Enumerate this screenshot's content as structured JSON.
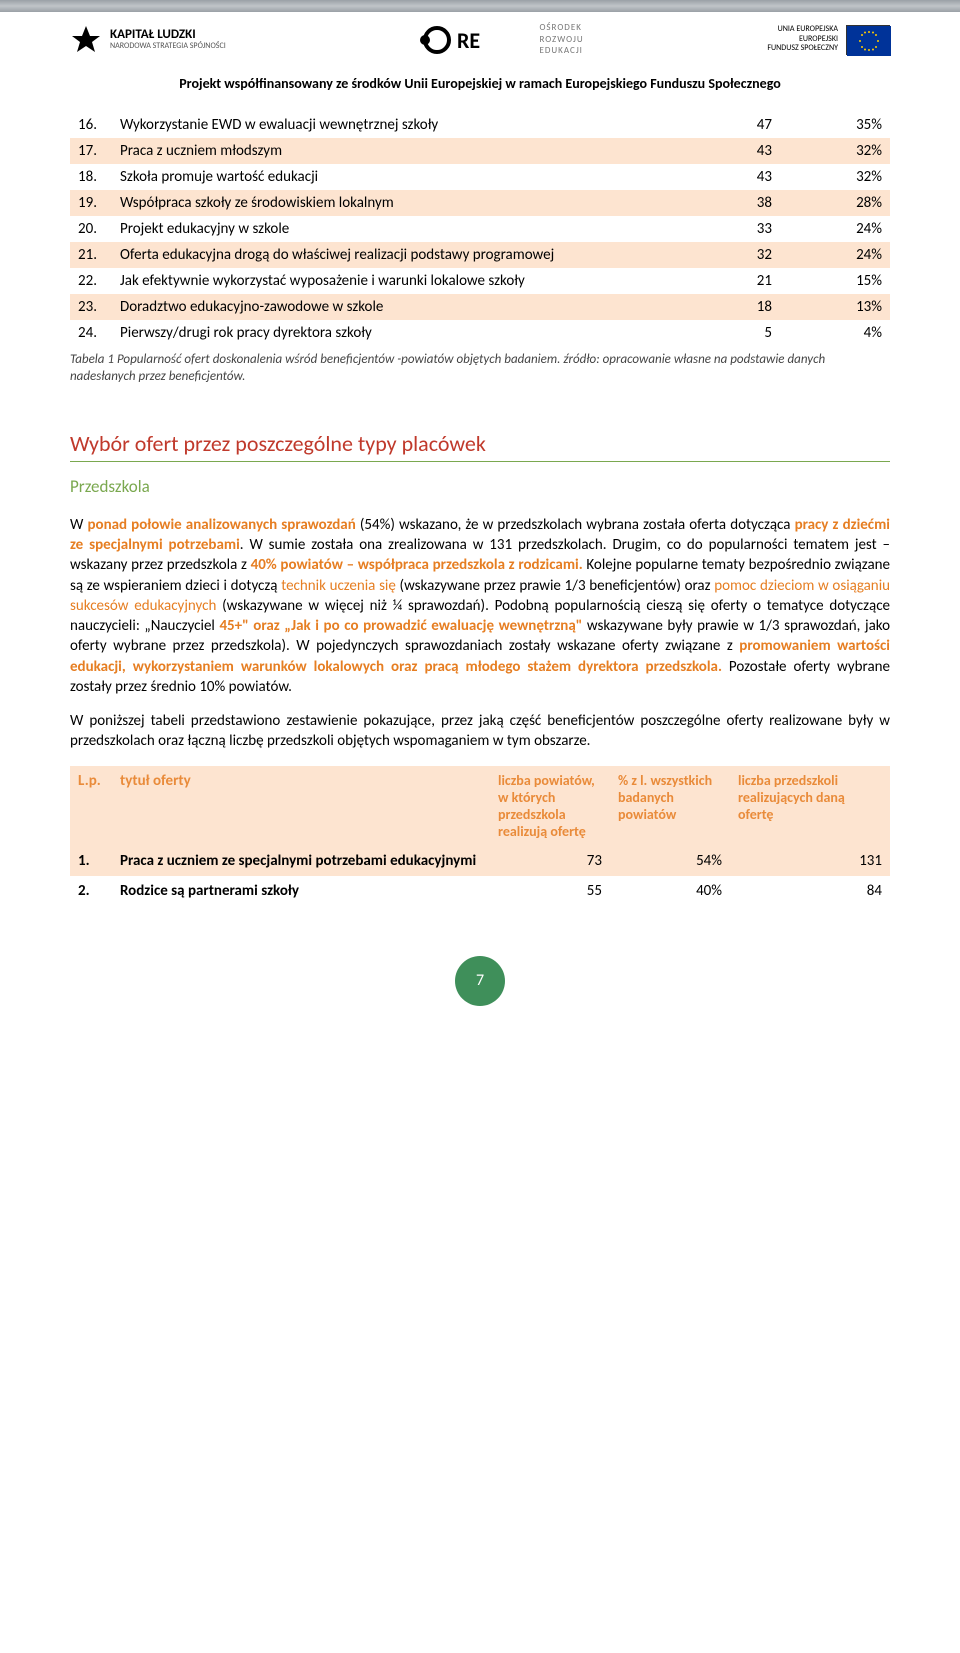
{
  "header": {
    "kl_title": "KAPITAŁ LUDZKI",
    "kl_sub": "NARODOWA STRATEGIA SPÓJNOŚCI",
    "ore_l1": "OŚRODEK",
    "ore_l2": "ROZWOJU",
    "ore_l3": "EDUKACJI",
    "eu_l1": "UNIA EUROPEJSKA",
    "eu_l2": "EUROPEJSKI",
    "eu_l3": "FUNDUSZ SPOŁECZNY",
    "cofinance": "Projekt współfinansowany ze środków Unii Europejskiej w ramach Europejskiego Funduszu Społecznego"
  },
  "table1": {
    "stripe_color": "#fde4d0",
    "rows": [
      {
        "n": "16.",
        "title": "Wykorzystanie EWD w ewaluacji wewnętrznej szkoły",
        "v1": "47",
        "v2": "35%",
        "stripe": false
      },
      {
        "n": "17.",
        "title": "Praca z uczniem młodszym",
        "v1": "43",
        "v2": "32%",
        "stripe": true
      },
      {
        "n": "18.",
        "title": "Szkoła promuje wartość edukacji",
        "v1": "43",
        "v2": "32%",
        "stripe": false
      },
      {
        "n": "19.",
        "title": "Współpraca szkoły ze środowiskiem lokalnym",
        "v1": "38",
        "v2": "28%",
        "stripe": true
      },
      {
        "n": "20.",
        "title": "Projekt edukacyjny w szkole",
        "v1": "33",
        "v2": "24%",
        "stripe": false
      },
      {
        "n": "21.",
        "title": "Oferta edukacyjna drogą do właściwej realizacji podstawy programowej",
        "v1": "32",
        "v2": "24%",
        "stripe": true
      },
      {
        "n": "22.",
        "title": "Jak efektywnie wykorzystać wyposażenie i warunki lokalowe szkoły",
        "v1": "21",
        "v2": "15%",
        "stripe": false
      },
      {
        "n": "23.",
        "title": "Doradztwo edukacyjno-zawodowe w szkole",
        "v1": "18",
        "v2": "13%",
        "stripe": true
      },
      {
        "n": "24.",
        "title": "Pierwszy/drugi rok pracy dyrektora szkoły",
        "v1": "5",
        "v2": "4%",
        "stripe": false
      }
    ],
    "caption": "Tabela 1 Popularność ofert doskonalenia wśród beneficjentów -powiatów objętych badaniem. źródło: opracowanie własne na podstawie danych nadesłanych przez beneficjentów."
  },
  "section": {
    "title": "Wybór ofert przez poszczególne typy placówek",
    "sub": "Przedszkola"
  },
  "para1": {
    "s1a": "W ",
    "s1b": "ponad połowie analizowanych sprawozdań",
    "s1c": " (54%) wskazano, że w przedszkolach wybrana została oferta  dotycząca ",
    "s1d": "pracy z dziećmi ze specjalnymi potrzebami",
    "s1e": ". W sumie została ona zrealizowana w 131 przedszkolach. Drugim, co do popularności tematem jest – wskazany przez przedszkola z ",
    "s1f": "40% powiatów – współpraca przedszkola z rodzicami.",
    "s1g": " Kolejne popularne tematy bezpośrednio związane są ze wspieraniem dzieci i dotyczą ",
    "s1h": "technik uczenia się",
    "s1i": " (wskazywane przez prawie 1/3 beneficjentów) oraz ",
    "s1j": "pomoc dzieciom w osiąganiu sukcesów edukacyjnych",
    "s1k": " (wskazywane w więcej niż ¼ sprawozdań). Podobną popularnością cieszą się oferty o tematyce dotyczące nauczycieli: „Nauczyciel ",
    "s1l": "45+\" oraz „Jak i po co prowadzić ewaluację wewnętrzną\"",
    "s1m": " wskazywane były prawie w 1/3 sprawozdań, jako oferty wybrane przez przedszkola). W pojedynczych sprawozdaniach zostały wskazane oferty związane z ",
    "s1n": "promowaniem wartości edukacji, wykorzystaniem warunków lokalowych oraz pracą młodego stażem dyrektora przedszkola.",
    "s1o": "  Pozostałe oferty wybrane zostały przez średnio 10% powiatów."
  },
  "para2": "W poniższej tabeli przedstawiono zestawienie pokazujące, przez jaką część beneficjentów poszczególne oferty realizowane były w przedszkolach oraz łączną liczbę przedszkoli objętych wspomaganiem w tym obszarze.",
  "table2": {
    "header_color": "#e98b3a",
    "stripe_color": "#fde4d0",
    "headers": {
      "c0": "L.p.",
      "c1": "tytuł oferty",
      "c2": "liczba powiatów, w których przedszkola realizują ofertę",
      "c3": "% z l. wszystkich badanych powiatów",
      "c4": "liczba przedszkoli realizujących daną ofertę"
    },
    "rows": [
      {
        "n": "1.",
        "title": "Praca z uczniem ze specjalnymi potrzebami edukacyjnymi",
        "v1": "73",
        "v2": "54%",
        "v3": "131",
        "stripe": true,
        "bold": true
      },
      {
        "n": "2.",
        "title": "Rodzice są partnerami szkoły",
        "v1": "55",
        "v2": "40%",
        "v3": "84",
        "stripe": false,
        "bold": true
      }
    ]
  },
  "page_number": "7",
  "colors": {
    "stripe": "#fde4d0",
    "section_title": "#c0392b",
    "section_rule": "#7aa84f",
    "sub_title": "#7aa84f",
    "highlight": "#e67e22",
    "table2_header": "#e98b3a",
    "page_badge": "#3f8f5a"
  }
}
